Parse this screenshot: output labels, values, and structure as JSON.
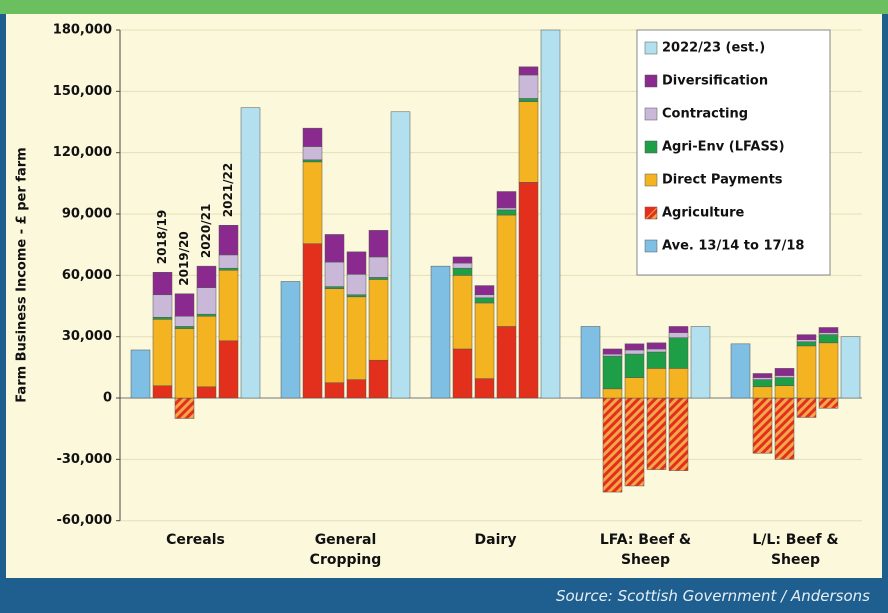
{
  "chart_data": {
    "type": "bar",
    "stacked": true,
    "ylabel": "Farm Business Income - £ per farm",
    "source": "Source: Scottish Government / Andersons",
    "categories": [
      "Cereals",
      "General Cropping",
      "Dairy",
      "LFA: Beef & Sheep",
      "L/L: Beef & Sheep"
    ],
    "years": [
      "2018/19",
      "2019/20",
      "2020/21",
      "2021/22"
    ],
    "ylim": [
      -60000,
      180000
    ],
    "yticks": [
      {
        "value": -60000,
        "label": "-60,000"
      },
      {
        "value": -30000,
        "label": "-30,000"
      },
      0,
      {
        "value": 30000,
        "label": "30,000"
      },
      {
        "value": 60000,
        "label": "60,000"
      },
      {
        "value": 90000,
        "label": "90,000"
      },
      {
        "value": 120000,
        "label": "120,000"
      },
      {
        "value": 150000,
        "label": "150,000"
      },
      {
        "value": 180000,
        "label": "180,000"
      }
    ],
    "grid": true,
    "legend": "upper right",
    "series": [
      {
        "name": "Ave. 13/14 to 17/18",
        "color": "#7fbfe3",
        "values": [
          23500,
          57000,
          64500,
          35000,
          26500
        ]
      },
      {
        "name": "Agriculture",
        "color": "#e2301c",
        "hatch_color": "#f5a54a",
        "values": [
          [
            6000,
            -10000,
            5500,
            28000
          ],
          [
            75500,
            7500,
            9000,
            18500
          ],
          [
            24000,
            9500,
            35000,
            105500
          ],
          [
            -46000,
            -43000,
            -35000,
            -35500
          ],
          [
            -27000,
            -30000,
            -9500,
            -5000
          ]
        ]
      },
      {
        "name": "Direct Payments",
        "color": "#f4b422",
        "values": [
          [
            32500,
            34000,
            34500,
            34500
          ],
          [
            40000,
            46000,
            40500,
            39500
          ],
          [
            36000,
            37000,
            54500,
            39500
          ],
          [
            4500,
            10000,
            14500,
            14500
          ],
          [
            5500,
            6000,
            25500,
            27000
          ]
        ]
      },
      {
        "name": "Agri-Env (LFASS)",
        "color": "#1f9e48",
        "values": [
          [
            1000,
            1000,
            1000,
            1000
          ],
          [
            1000,
            1000,
            1000,
            1000
          ],
          [
            3500,
            2500,
            2500,
            1500
          ],
          [
            16000,
            11500,
            8000,
            15000
          ],
          [
            3500,
            4000,
            2000,
            4000
          ]
        ]
      },
      {
        "name": "Contracting",
        "color": "#c9b8d8",
        "values": [
          [
            11000,
            5000,
            13000,
            6500
          ],
          [
            6500,
            12000,
            10000,
            10000
          ],
          [
            2500,
            1500,
            1000,
            11500
          ],
          [
            1000,
            2000,
            1500,
            2500
          ],
          [
            1000,
            1000,
            1000,
            1000
          ]
        ]
      },
      {
        "name": "Diversification",
        "color": "#8b2a8e",
        "values": [
          [
            11000,
            11000,
            10500,
            14500
          ],
          [
            9000,
            13500,
            11000,
            13000
          ],
          [
            3000,
            4500,
            8000,
            4000
          ],
          [
            2500,
            3000,
            3000,
            3000
          ],
          [
            2000,
            3500,
            2500,
            2500
          ]
        ]
      },
      {
        "name": "2022/23 (est.)",
        "color": "#b3e0ee",
        "values": [
          142000,
          140000,
          180000,
          35000,
          30000
        ]
      }
    ]
  }
}
